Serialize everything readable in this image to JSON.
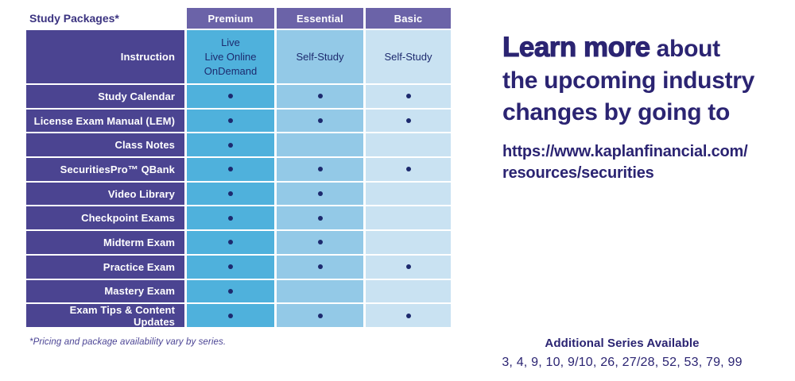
{
  "table": {
    "corner_label": "Study Packages*",
    "columns": [
      "Premium",
      "Essential",
      "Basic"
    ],
    "instruction": {
      "label": "Instruction",
      "premium_lines": [
        "Live",
        "Live Online",
        "OnDemand"
      ],
      "essential": "Self-Study",
      "basic": "Self-Study"
    },
    "rows": [
      {
        "label": "Study Calendar",
        "premium": true,
        "essential": true,
        "basic": true
      },
      {
        "label": "License Exam Manual (LEM)",
        "premium": true,
        "essential": true,
        "basic": true
      },
      {
        "label": "Class Notes",
        "premium": true,
        "essential": false,
        "basic": false
      },
      {
        "label": "SecuritiesPro™ QBank",
        "premium": true,
        "essential": true,
        "basic": true
      },
      {
        "label": "Video Library",
        "premium": true,
        "essential": true,
        "basic": false
      },
      {
        "label": "Checkpoint Exams",
        "premium": true,
        "essential": true,
        "basic": false
      },
      {
        "label": "Midterm Exam",
        "premium": true,
        "essential": true,
        "basic": false
      },
      {
        "label": "Practice Exam",
        "premium": true,
        "essential": true,
        "basic": true
      },
      {
        "label": "Mastery Exam",
        "premium": true,
        "essential": false,
        "basic": false
      },
      {
        "label": "Exam Tips & Content Updates",
        "premium": true,
        "essential": true,
        "basic": true
      }
    ],
    "included_marker": "•",
    "footnote": "*Pricing and package availability vary by series."
  },
  "promo": {
    "headline_emphasis": "Learn more",
    "headline_line1_rest": " about",
    "headline_line2": "the upcoming industry",
    "headline_line3": "changes by going to",
    "url_line1": "https://www.kaplanfinancial.com/",
    "url_line2": "resources/securities"
  },
  "additional_series": {
    "title": "Additional Series Available",
    "values": "3, 4, 9, 10, 9/10, 26, 27/28, 52, 53, 79, 99"
  },
  "colors": {
    "header_purple": "#6b63a8",
    "row_label_purple": "#4b4491",
    "premium_blue": "#4fb1dc",
    "essential_blue": "#93c9e7",
    "basic_blue": "#c9e2f2",
    "marker_navy": "#1d2a6e",
    "headline_navy": "#2b2472",
    "footnote_purple": "#4a4394"
  }
}
